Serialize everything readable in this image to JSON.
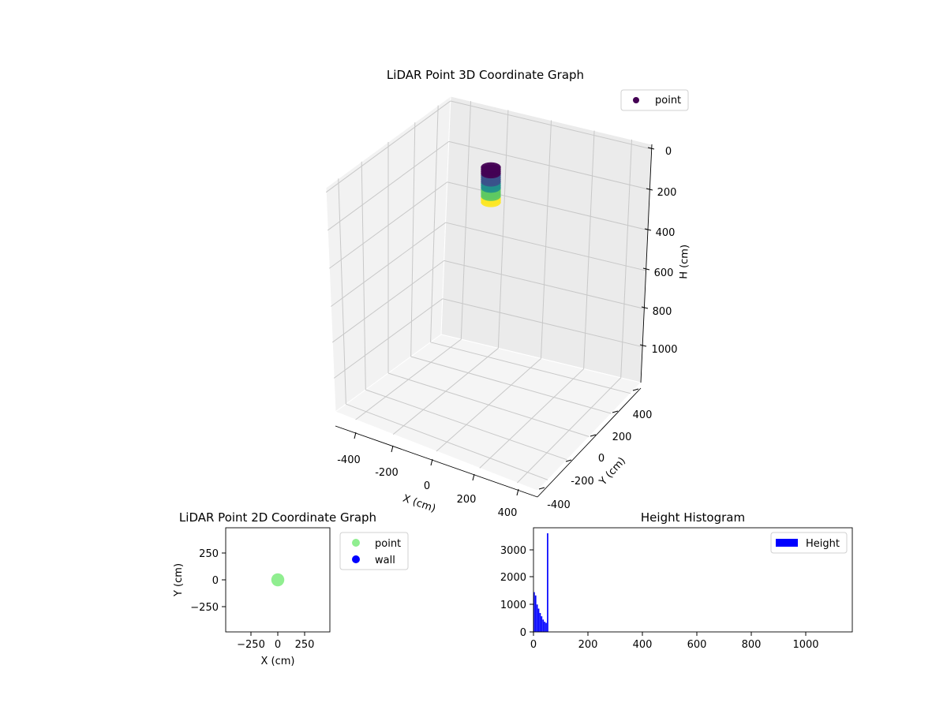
{
  "chart_data": [
    {
      "type": "scatter",
      "title": "LiDAR Point 3D Coordinate Graph",
      "xlabel": "X (cm)",
      "ylabel": "Y (cm)",
      "zlabel": "H (cm)",
      "xlim": [
        -450,
        450
      ],
      "ylim": [
        -450,
        450
      ],
      "zlim": [
        1100,
        0
      ],
      "xticks": [
        "-400",
        "-200",
        "0",
        "200",
        "400"
      ],
      "yticks": [
        "-400",
        "-200",
        "0",
        "200",
        "400"
      ],
      "zticks": [
        "0",
        "200",
        "400",
        "600",
        "800",
        "1000"
      ],
      "legend": {
        "entries": [
          {
            "label": "point",
            "color": "#440154"
          }
        ],
        "placement": "top-right"
      },
      "grid": true,
      "cluster": {
        "x_center": 0,
        "y_center": 0,
        "radius": 30,
        "h_range": [
          0,
          55
        ]
      },
      "colormap": [
        "#440154",
        "#3b528b",
        "#21918c",
        "#5ec962",
        "#fde725"
      ]
    },
    {
      "type": "scatter",
      "title": "LiDAR Point 2D Coordinate Graph",
      "xlabel": "X (cm)",
      "ylabel": "Y (cm)",
      "xlim": [
        -480,
        480
      ],
      "ylim": [
        -480,
        480
      ],
      "xticks": [
        "−250",
        "0",
        "250"
      ],
      "yticks": [
        "250",
        "0",
        "−250"
      ],
      "series": [
        {
          "name": "point",
          "color": "#90ee90",
          "points": [
            [
              0,
              0
            ]
          ],
          "radius_cm": 60
        },
        {
          "name": "wall",
          "color": "#0000ff",
          "points": []
        }
      ],
      "legend_placement": "outside-right"
    },
    {
      "type": "bar",
      "title": "Height Histogram",
      "xlabel": "",
      "ylabel": "",
      "xlim": [
        0,
        1170
      ],
      "ylim": [
        0,
        3800
      ],
      "xticks": [
        "0",
        "200",
        "400",
        "600",
        "800",
        "1000"
      ],
      "yticks": [
        "0",
        "1000",
        "2000",
        "3000"
      ],
      "bin_width": 5.5,
      "bins": [
        {
          "x": 0,
          "value": 1450
        },
        {
          "x": 5.5,
          "value": 1330
        },
        {
          "x": 11,
          "value": 1000
        },
        {
          "x": 16.5,
          "value": 850
        },
        {
          "x": 22,
          "value": 690
        },
        {
          "x": 27.5,
          "value": 570
        },
        {
          "x": 33,
          "value": 450
        },
        {
          "x": 38.5,
          "value": 370
        },
        {
          "x": 44,
          "value": 330
        },
        {
          "x": 49.5,
          "value": 3600
        }
      ],
      "legend": {
        "entries": [
          {
            "label": "Height",
            "color": "#0000ff"
          }
        ],
        "placement": "top-right"
      }
    }
  ]
}
